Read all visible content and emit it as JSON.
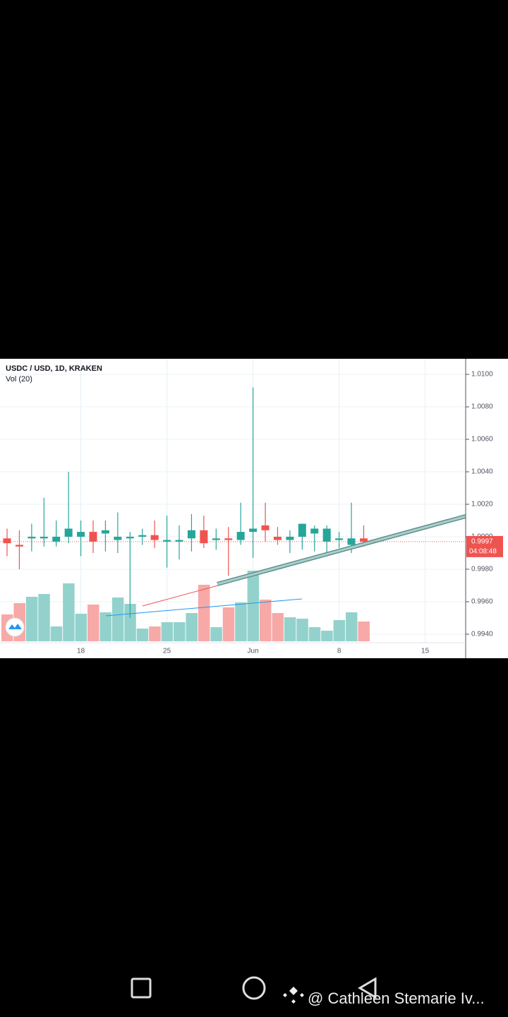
{
  "chart_data": {
    "type": "candlestick",
    "title": "USDC / USD, 1D, KRAKEN",
    "subtitle": "Vol (20)",
    "categories": [
      null,
      null,
      null,
      null,
      null,
      null,
      "18",
      null,
      null,
      null,
      null,
      null,
      null,
      "25",
      null,
      null,
      null,
      null,
      null,
      null,
      "Jun",
      null,
      null,
      null,
      null,
      null,
      null,
      "8",
      null,
      null,
      null,
      null,
      null,
      null,
      "15",
      null,
      null,
      null
    ],
    "open": [
      0.9999,
      0.9995,
      0.9999,
      0.9999,
      0.9997,
      1.0,
      1.0,
      1.0003,
      1.0002,
      0.9998,
      0.9999,
      1.0,
      1.0001,
      0.9997,
      0.9997,
      0.9999,
      1.0004,
      0.9998,
      0.9999,
      0.9998,
      1.0003,
      1.0007,
      1.0,
      0.9998,
      1.0,
      1.0002,
      0.9997,
      0.9998,
      0.9995,
      0.9999,
      null,
      null,
      null,
      null,
      null,
      null,
      null,
      null
    ],
    "high": [
      1.0005,
      1.0004,
      1.0008,
      1.0024,
      1.001,
      1.004,
      1.001,
      1.001,
      1.001,
      1.0015,
      1.0003,
      1.0005,
      1.001,
      1.0013,
      1.0007,
      1.0014,
      1.0013,
      1.0005,
      1.0006,
      1.0021,
      1.0092,
      1.0021,
      1.0006,
      1.0004,
      1.0008,
      1.0007,
      1.0007,
      1.0003,
      1.0021,
      1.0007,
      null,
      null,
      null,
      null,
      null,
      null,
      null,
      null
    ],
    "low": [
      0.9988,
      0.998,
      0.9991,
      0.9994,
      0.9994,
      0.9996,
      0.9988,
      0.999,
      0.9991,
      0.999,
      0.995,
      0.9995,
      0.9993,
      0.9981,
      0.9986,
      0.9991,
      0.9993,
      0.9992,
      0.9976,
      0.9995,
      0.9987,
      0.9997,
      0.9995,
      0.999,
      0.9992,
      0.9991,
      0.999,
      0.9993,
      0.999,
      0.9994,
      null,
      null,
      null,
      null,
      null,
      null,
      null,
      null
    ],
    "close": [
      0.9996,
      0.9994,
      1.0,
      1.0,
      1.0,
      1.0005,
      1.0003,
      0.9997,
      1.0004,
      1.0,
      1.0,
      1.0001,
      0.9998,
      0.9998,
      0.9998,
      1.0004,
      0.9996,
      0.9999,
      0.9998,
      1.0003,
      1.0005,
      1.0004,
      0.9998,
      1.0,
      1.0008,
      1.0005,
      1.0005,
      0.9999,
      0.9999,
      0.9997,
      null,
      null,
      null,
      null,
      null,
      null,
      null,
      null
    ],
    "volume": [
      38,
      54,
      63,
      67,
      21,
      82,
      39,
      52,
      41,
      62,
      53,
      18,
      21,
      27,
      27,
      40,
      80,
      20,
      48,
      55,
      100,
      59,
      40,
      34,
      32,
      20,
      15,
      30,
      41,
      28,
      null,
      null,
      null,
      null,
      null,
      null,
      null,
      null
    ],
    "up_color": "#26a69a",
    "down_color": "#ef5350",
    "volume_up_color": "#93d2cc",
    "volume_down_color": "#f7a9a7",
    "ylim": [
      0.99252,
      1.01096
    ],
    "yticks": [
      {
        "value": 0.994,
        "label": "0.9940"
      },
      {
        "value": 0.996,
        "label": "0.9960"
      },
      {
        "value": 0.998,
        "label": "0.9980"
      },
      {
        "value": 1.0,
        "label": "1.0000"
      },
      {
        "value": 1.002,
        "label": "1.0020"
      },
      {
        "value": 1.004,
        "label": "1.0040"
      },
      {
        "value": 1.006,
        "label": "1.0060"
      },
      {
        "value": 1.008,
        "label": "1.0080"
      },
      {
        "value": 1.01,
        "label": "1.0100"
      }
    ],
    "grid": true,
    "last_price_label": "0.9997",
    "countdown": "04:08:48"
  },
  "overlay_text": "@ Cathleen Stemarie Iv..."
}
